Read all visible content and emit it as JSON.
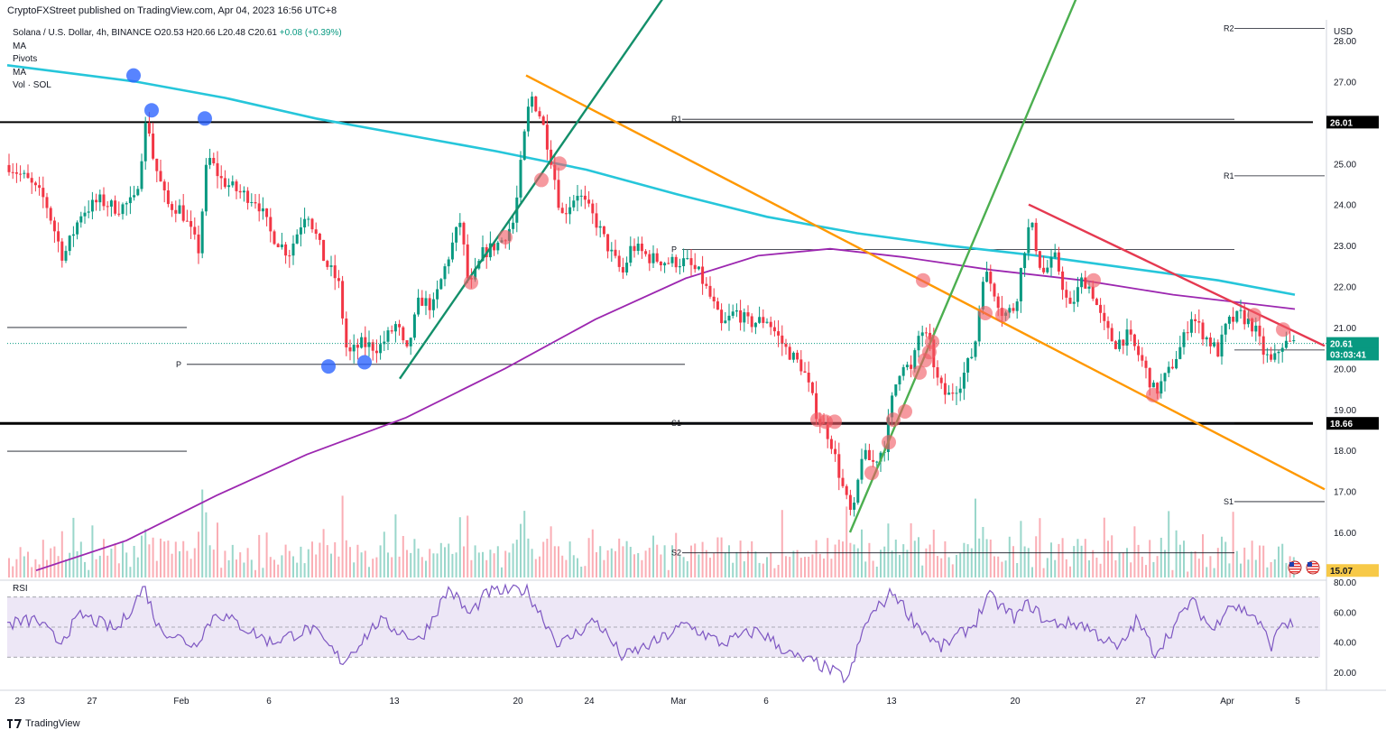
{
  "header": {
    "published": "CryptoFXStreet published on TradingView.com, Apr 04, 2023 16:56 UTC+8"
  },
  "legend": {
    "symbol": "Solana / U.S. Dollar, 4h, BINANCE",
    "ohlc": "O20.53 H20.66 L20.48 C20.61",
    "change": "+0.08 (+0.39%)",
    "indicators": [
      "MA",
      "Pivots",
      "MA",
      "Vol · SOL"
    ]
  },
  "rsi_label": "RSI",
  "branding": "TradingView",
  "colors": {
    "ma_cyan": "#26c6da",
    "ma_purple": "#9c27b0",
    "trend_orange": "#ff9800",
    "trend_teal": "#138f6a",
    "trend_green": "#4caf50",
    "trend_red": "#e53950",
    "bull": "#089981",
    "bear": "#f23645",
    "rsi_line": "#7e57c2",
    "rsi_band": "#ede7f6"
  },
  "chart_data": {
    "type": "candlestick",
    "title": "Solana / U.S. Dollar, 4h, BINANCE",
    "currency": "USD",
    "y_ticks": [
      "28.00",
      "27.00",
      "26.00",
      "25.00",
      "24.00",
      "23.00",
      "22.00",
      "21.00",
      "20.00",
      "19.00",
      "18.00",
      "17.00",
      "16.00"
    ],
    "ylim": [
      15.07,
      28.5
    ],
    "x_ticks": [
      "23",
      "27",
      "Feb",
      "6",
      "13",
      "20",
      "24",
      "Mar",
      "6",
      "13",
      "20",
      "27",
      "Apr",
      "5"
    ],
    "price_badges": [
      {
        "label": "26.01",
        "value": 26.01,
        "style": "black"
      },
      {
        "label": "18.66",
        "value": 18.66,
        "style": "black"
      },
      {
        "label": "20.61",
        "value": 20.61,
        "style": "green"
      },
      {
        "label": "03:03:41",
        "value": 20.35,
        "style": "green"
      },
      {
        "label": "15.07",
        "value": 15.07,
        "style": "yellow"
      }
    ],
    "horizontal_levels": [
      {
        "name": "resistance",
        "value": 26.01,
        "from_t": 0,
        "to_t": 1455,
        "width": 2
      },
      {
        "name": "support",
        "value": 18.66,
        "from_t": 0,
        "to_t": 1455,
        "width": 3
      }
    ],
    "pivot_levels": [
      {
        "label": "R2",
        "value": 28.3,
        "t0": 1368,
        "t1": 1468
      },
      {
        "label": "R1",
        "value": 26.08,
        "t0": 756,
        "t1": 1368
      },
      {
        "label": "R1",
        "value": 24.7,
        "t0": 1368,
        "t1": 1468
      },
      {
        "label": "P",
        "value": 22.9,
        "t0": 756,
        "t1": 1368
      },
      {
        "label": "",
        "value": 20.45,
        "t0": 1368,
        "t1": 1468
      },
      {
        "label": "P",
        "value": 20.1,
        "t0": 207,
        "t1": 759
      },
      {
        "label": "",
        "value": 21.0,
        "t0": 8,
        "t1": 207
      },
      {
        "label": "",
        "value": 17.98,
        "t0": 8,
        "t1": 207
      },
      {
        "label": "S1",
        "value": 18.66,
        "t0": 756,
        "t1": 1368
      },
      {
        "label": "S1",
        "value": 16.75,
        "t0": 1368,
        "t1": 1468
      },
      {
        "label": "S2",
        "value": 15.5,
        "t0": 756,
        "t1": 1368
      }
    ],
    "trendlines": [
      {
        "name": "orange-downtrend",
        "color": "trend_orange",
        "points": [
          [
            583,
            27.15
          ],
          [
            1468,
            17.05
          ]
        ]
      },
      {
        "name": "teal-uptrend",
        "color": "trend_teal",
        "points": [
          [
            443,
            19.75
          ],
          [
            740,
            29.2
          ]
        ]
      },
      {
        "name": "green-uptrend",
        "color": "trend_green",
        "points": [
          [
            942,
            16.0
          ],
          [
            1196,
            29.2
          ]
        ]
      },
      {
        "name": "red-downtrend",
        "color": "trend_red",
        "points": [
          [
            1140,
            24.0
          ],
          [
            1468,
            20.55
          ]
        ]
      }
    ],
    "price_path": [
      [
        8,
        25.0
      ],
      [
        30,
        24.6
      ],
      [
        50,
        24.1
      ],
      [
        70,
        22.7
      ],
      [
        90,
        23.8
      ],
      [
        110,
        24.1
      ],
      [
        130,
        23.9
      ],
      [
        150,
        24.1
      ],
      [
        163,
        26.2
      ],
      [
        170,
        25.1
      ],
      [
        185,
        24.0
      ],
      [
        200,
        23.9
      ],
      [
        220,
        22.9
      ],
      [
        230,
        25.2
      ],
      [
        245,
        24.6
      ],
      [
        265,
        24.3
      ],
      [
        285,
        24.1
      ],
      [
        300,
        23.3
      ],
      [
        320,
        22.8
      ],
      [
        340,
        23.9
      ],
      [
        360,
        22.6
      ],
      [
        375,
        22.1
      ],
      [
        385,
        20.3
      ],
      [
        400,
        20.6
      ],
      [
        420,
        20.5
      ],
      [
        440,
        21.1
      ],
      [
        450,
        20.3
      ],
      [
        465,
        21.7
      ],
      [
        480,
        21.5
      ],
      [
        495,
        22.6
      ],
      [
        510,
        23.6
      ],
      [
        520,
        21.9
      ],
      [
        535,
        22.8
      ],
      [
        555,
        23.1
      ],
      [
        570,
        23.6
      ],
      [
        580,
        25.5
      ],
      [
        588,
        26.7
      ],
      [
        600,
        26.1
      ],
      [
        612,
        25.0
      ],
      [
        622,
        23.7
      ],
      [
        640,
        24.3
      ],
      [
        660,
        23.6
      ],
      [
        675,
        22.9
      ],
      [
        690,
        22.3
      ],
      [
        700,
        23.0
      ],
      [
        720,
        22.7
      ],
      [
        740,
        22.6
      ],
      [
        760,
        22.6
      ],
      [
        775,
        22.3
      ],
      [
        790,
        21.6
      ],
      [
        800,
        21.0
      ],
      [
        815,
        21.4
      ],
      [
        830,
        21.1
      ],
      [
        850,
        21.2
      ],
      [
        870,
        20.5
      ],
      [
        890,
        20.0
      ],
      [
        905,
        18.9
      ],
      [
        920,
        18.3
      ],
      [
        935,
        17.0
      ],
      [
        945,
        16.3
      ],
      [
        955,
        17.9
      ],
      [
        968,
        17.7
      ],
      [
        980,
        18.1
      ],
      [
        990,
        19.4
      ],
      [
        1000,
        20.2
      ],
      [
        1010,
        19.9
      ],
      [
        1020,
        21.0
      ],
      [
        1030,
        20.6
      ],
      [
        1040,
        19.6
      ],
      [
        1050,
        19.3
      ],
      [
        1065,
        19.7
      ],
      [
        1080,
        20.5
      ],
      [
        1090,
        22.4
      ],
      [
        1100,
        22.0
      ],
      [
        1112,
        21.3
      ],
      [
        1125,
        21.5
      ],
      [
        1135,
        22.9
      ],
      [
        1142,
        23.6
      ],
      [
        1155,
        22.3
      ],
      [
        1170,
        22.7
      ],
      [
        1185,
        21.4
      ],
      [
        1200,
        22.2
      ],
      [
        1210,
        21.9
      ],
      [
        1222,
        21.1
      ],
      [
        1235,
        20.6
      ],
      [
        1250,
        20.8
      ],
      [
        1265,
        20.2
      ],
      [
        1280,
        19.4
      ],
      [
        1295,
        19.9
      ],
      [
        1310,
        20.6
      ],
      [
        1320,
        21.3
      ],
      [
        1335,
        20.8
      ],
      [
        1350,
        20.4
      ],
      [
        1360,
        21.1
      ],
      [
        1375,
        21.3
      ],
      [
        1390,
        21.0
      ],
      [
        1400,
        20.4
      ],
      [
        1410,
        20.1
      ],
      [
        1420,
        20.6
      ],
      [
        1435,
        20.61
      ]
    ],
    "moving_averages": [
      {
        "name": "MA cyan",
        "color": "ma_cyan",
        "points": [
          [
            8,
            27.4
          ],
          [
            150,
            27.0
          ],
          [
            250,
            26.6
          ],
          [
            350,
            26.1
          ],
          [
            450,
            25.7
          ],
          [
            550,
            25.3
          ],
          [
            650,
            24.85
          ],
          [
            750,
            24.25
          ],
          [
            850,
            23.7
          ],
          [
            950,
            23.3
          ],
          [
            1050,
            23.0
          ],
          [
            1150,
            22.75
          ],
          [
            1250,
            22.45
          ],
          [
            1350,
            22.15
          ],
          [
            1435,
            21.8
          ]
        ]
      },
      {
        "name": "MA purple",
        "color": "ma_purple",
        "points": [
          [
            40,
            15.07
          ],
          [
            140,
            15.8
          ],
          [
            240,
            16.9
          ],
          [
            340,
            17.9
          ],
          [
            450,
            18.8
          ],
          [
            560,
            20.0
          ],
          [
            660,
            21.2
          ],
          [
            760,
            22.2
          ],
          [
            840,
            22.75
          ],
          [
            920,
            22.92
          ],
          [
            1000,
            22.72
          ],
          [
            1100,
            22.4
          ],
          [
            1200,
            22.15
          ],
          [
            1300,
            21.8
          ],
          [
            1435,
            21.45
          ]
        ]
      }
    ],
    "markers": [
      {
        "color": "blue",
        "t": 148,
        "v": 27.15
      },
      {
        "color": "blue",
        "t": 168,
        "v": 26.3
      },
      {
        "color": "blue",
        "t": 227,
        "v": 26.1
      },
      {
        "color": "blue",
        "t": 364,
        "v": 20.05
      },
      {
        "color": "blue",
        "t": 404,
        "v": 20.15
      },
      {
        "color": "red",
        "t": 522,
        "v": 22.1
      },
      {
        "color": "red",
        "t": 560,
        "v": 23.2
      },
      {
        "color": "red",
        "t": 600,
        "v": 24.6
      },
      {
        "color": "red",
        "t": 620,
        "v": 25.0
      },
      {
        "color": "red",
        "t": 906,
        "v": 18.75
      },
      {
        "color": "red",
        "t": 915,
        "v": 18.7
      },
      {
        "color": "red",
        "t": 925,
        "v": 18.7
      },
      {
        "color": "red",
        "t": 966,
        "v": 17.45
      },
      {
        "color": "red",
        "t": 985,
        "v": 18.2
      },
      {
        "color": "red",
        "t": 990,
        "v": 18.75
      },
      {
        "color": "red",
        "t": 1003,
        "v": 18.95
      },
      {
        "color": "red",
        "t": 1019,
        "v": 19.9
      },
      {
        "color": "red",
        "t": 1025,
        "v": 20.2
      },
      {
        "color": "red",
        "t": 1030,
        "v": 20.4
      },
      {
        "color": "red",
        "t": 1033,
        "v": 20.65
      },
      {
        "color": "red",
        "t": 1023,
        "v": 22.15
      },
      {
        "color": "red",
        "t": 1092,
        "v": 21.35
      },
      {
        "color": "red",
        "t": 1111,
        "v": 21.3
      },
      {
        "color": "red",
        "t": 1212,
        "v": 22.15
      },
      {
        "color": "red",
        "t": 1278,
        "v": 19.35
      },
      {
        "color": "red",
        "t": 1390,
        "v": 21.3
      },
      {
        "color": "red",
        "t": 1422,
        "v": 20.95
      }
    ],
    "volume_max_note": "volume bars drawn at bottom of price pane",
    "rsi": {
      "levels": [
        80,
        60,
        40,
        20
      ],
      "band": [
        30,
        70
      ],
      "y_tick_labels": [
        "80.00",
        "60.00",
        "40.00",
        "20.00"
      ],
      "points": [
        [
          8,
          52
        ],
        [
          40,
          55
        ],
        [
          65,
          40
        ],
        [
          90,
          58
        ],
        [
          130,
          48
        ],
        [
          160,
          77
        ],
        [
          175,
          50
        ],
        [
          215,
          38
        ],
        [
          240,
          60
        ],
        [
          300,
          40
        ],
        [
          345,
          49
        ],
        [
          380,
          27
        ],
        [
          420,
          54
        ],
        [
          465,
          41
        ],
        [
          498,
          76
        ],
        [
          520,
          58
        ],
        [
          540,
          73
        ],
        [
          583,
          75
        ],
        [
          620,
          38
        ],
        [
          660,
          55
        ],
        [
          690,
          30
        ],
        [
          730,
          41
        ],
        [
          760,
          52
        ],
        [
          800,
          39
        ],
        [
          840,
          48
        ],
        [
          880,
          30
        ],
        [
          905,
          26
        ],
        [
          940,
          15
        ],
        [
          960,
          54
        ],
        [
          990,
          74
        ],
        [
          1010,
          56
        ],
        [
          1042,
          36
        ],
        [
          1080,
          52
        ],
        [
          1095,
          71
        ],
        [
          1125,
          56
        ],
        [
          1140,
          66
        ],
        [
          1160,
          53
        ],
        [
          1200,
          52
        ],
        [
          1240,
          35
        ],
        [
          1260,
          55
        ],
        [
          1280,
          33
        ],
        [
          1300,
          49
        ],
        [
          1320,
          68
        ],
        [
          1345,
          47
        ],
        [
          1360,
          66
        ],
        [
          1390,
          58
        ],
        [
          1410,
          37
        ],
        [
          1420,
          54
        ],
        [
          1435,
          50
        ]
      ]
    },
    "flag_icons": [
      "us-flag-icon",
      "us-flag-icon"
    ]
  }
}
